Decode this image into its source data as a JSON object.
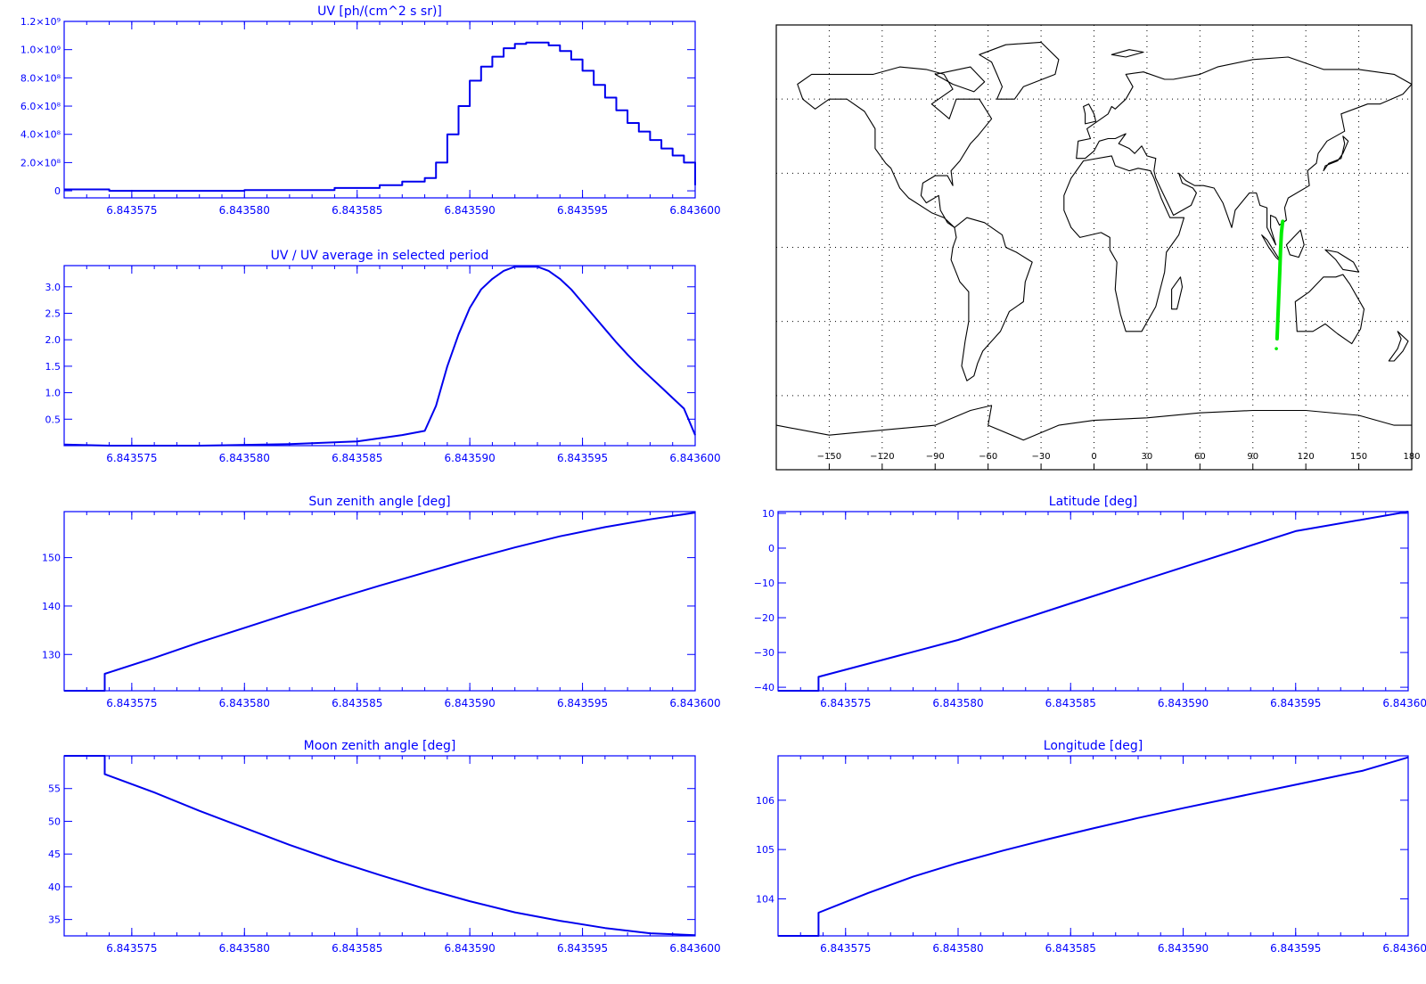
{
  "colors": {
    "axis": "#0000ff",
    "line": "#0000ee",
    "map": "#000000",
    "track": "#00ee00"
  },
  "chart_data": [
    {
      "id": "uv",
      "type": "line",
      "title": "UV [ph/(cm^2 s sr)]",
      "xlim": [
        6.843572,
        6.8436
      ],
      "ylim": [
        -50000000.0,
        1200000000.0
      ],
      "x_ticks": [
        6.843575,
        6.84358,
        6.843585,
        6.84359,
        6.843595,
        6.8436
      ],
      "x_tick_labels": [
        "6.843575",
        "6.843580",
        "6.843585",
        "6.843590",
        "6.843595",
        "6.843600"
      ],
      "y_ticks": [
        0,
        200000000.0,
        400000000.0,
        600000000.0,
        800000000.0,
        1000000000.0,
        1200000000.0
      ],
      "y_tick_labels": [
        "0",
        "2.0×10⁸",
        "4.0×10⁸",
        "6.0×10⁸",
        "8.0×10⁸",
        "1.0×10⁹",
        "1.2×10⁹"
      ],
      "x": [
        6.843572,
        6.843574,
        6.843576,
        6.84358,
        6.843584,
        6.843586,
        6.843587,
        6.843588,
        6.8435885,
        6.843589,
        6.8435895,
        6.84359,
        6.8435905,
        6.843591,
        6.8435915,
        6.843592,
        6.8435925,
        6.843593,
        6.8435935,
        6.843594,
        6.8435945,
        6.843595,
        6.8435955,
        6.843596,
        6.8435965,
        6.843597,
        6.8435975,
        6.843598,
        6.8435985,
        6.843599,
        6.8435995,
        6.8436
      ],
      "y": [
        10000000.0,
        0.0,
        0.0,
        5000000.0,
        20000000.0,
        40000000.0,
        65000000.0,
        90000000.0,
        200000000.0,
        400000000.0,
        600000000.0,
        780000000.0,
        880000000.0,
        950000000.0,
        1010000000.0,
        1040000000.0,
        1050000000.0,
        1050000000.0,
        1030000000.0,
        990000000.0,
        930000000.0,
        850000000.0,
        750000000.0,
        660000000.0,
        570000000.0,
        480000000.0,
        420000000.0,
        360000000.0,
        300000000.0,
        250000000.0,
        200000000.0,
        40000000.0
      ],
      "step": true
    },
    {
      "id": "uv_ratio",
      "type": "line",
      "title": "UV / UV average in selected period",
      "xlim": [
        6.843572,
        6.8436
      ],
      "ylim": [
        0.0,
        3.4
      ],
      "x_ticks": [
        6.843575,
        6.84358,
        6.843585,
        6.84359,
        6.843595,
        6.8436
      ],
      "x_tick_labels": [
        "6.843575",
        "6.843580",
        "6.843585",
        "6.843590",
        "6.843595",
        "6.843600"
      ],
      "y_ticks": [
        0.5,
        1.0,
        1.5,
        2.0,
        2.5,
        3.0
      ],
      "y_tick_labels": [
        "0.5",
        "1.0",
        "1.5",
        "2.0",
        "2.5",
        "3.0"
      ],
      "x": [
        6.843572,
        6.843574,
        6.843578,
        6.843582,
        6.843585,
        6.843587,
        6.843588,
        6.8435885,
        6.843589,
        6.8435895,
        6.84359,
        6.8435905,
        6.843591,
        6.8435915,
        6.843592,
        6.8435925,
        6.843593,
        6.8435935,
        6.843594,
        6.8435945,
        6.843595,
        6.8435955,
        6.843596,
        6.8435965,
        6.843597,
        6.8435975,
        6.843598,
        6.8435985,
        6.843599,
        6.8435995,
        6.8436
      ],
      "y": [
        0.02,
        0.0,
        0.0,
        0.03,
        0.08,
        0.2,
        0.28,
        0.75,
        1.5,
        2.1,
        2.6,
        2.95,
        3.15,
        3.3,
        3.38,
        3.38,
        3.38,
        3.3,
        3.15,
        2.95,
        2.7,
        2.45,
        2.2,
        1.95,
        1.72,
        1.5,
        1.3,
        1.1,
        0.9,
        0.7,
        0.2
      ]
    },
    {
      "id": "sun_zenith",
      "type": "line",
      "title": "Sun zenith angle [deg]",
      "xlim": [
        6.843572,
        6.8436
      ],
      "ylim": [
        122.5,
        159.5
      ],
      "x_ticks": [
        6.843575,
        6.84358,
        6.843585,
        6.84359,
        6.843595,
        6.8436
      ],
      "x_tick_labels": [
        "6.843575",
        "6.843580",
        "6.843585",
        "6.843590",
        "6.843595",
        "6.843600"
      ],
      "y_ticks": [
        130,
        140,
        150
      ],
      "y_tick_labels": [
        "130",
        "140",
        "150"
      ],
      "x": [
        6.843572,
        6.8435738,
        6.8435738,
        6.843576,
        6.843578,
        6.84358,
        6.843582,
        6.843584,
        6.843586,
        6.843588,
        6.84359,
        6.843592,
        6.843594,
        6.843596,
        6.843598,
        6.8436
      ],
      "y": [
        122.5,
        122.5,
        126.0,
        129.3,
        132.5,
        135.5,
        138.5,
        141.4,
        144.2,
        146.9,
        149.6,
        152.1,
        154.4,
        156.3,
        157.9,
        159.3
      ]
    },
    {
      "id": "moon_zenith",
      "type": "line",
      "title": "Moon zenith angle [deg]",
      "xlim": [
        6.843572,
        6.8436
      ],
      "ylim": [
        32.5,
        60.0
      ],
      "x_ticks": [
        6.843575,
        6.84358,
        6.843585,
        6.84359,
        6.843595,
        6.8436
      ],
      "x_tick_labels": [
        "6.843575",
        "6.843580",
        "6.843585",
        "6.843590",
        "6.843595",
        "6.843600"
      ],
      "y_ticks": [
        35,
        40,
        45,
        50,
        55
      ],
      "y_tick_labels": [
        "35",
        "40",
        "45",
        "50",
        "55"
      ],
      "x": [
        6.843572,
        6.8435738,
        6.8435738,
        6.843576,
        6.843578,
        6.84358,
        6.843582,
        6.843584,
        6.843586,
        6.843588,
        6.84359,
        6.843592,
        6.843594,
        6.843596,
        6.843598,
        6.8436
      ],
      "y": [
        60.0,
        60.0,
        57.2,
        54.4,
        51.6,
        49.0,
        46.4,
        44.0,
        41.8,
        39.7,
        37.8,
        36.1,
        34.8,
        33.7,
        32.9,
        32.6
      ]
    },
    {
      "id": "latitude",
      "type": "line",
      "title": "Latitude [deg]",
      "xlim": [
        6.843572,
        6.8436
      ],
      "ylim": [
        -41.0,
        10.5
      ],
      "x_ticks": [
        6.843575,
        6.84358,
        6.843585,
        6.84359,
        6.843595,
        6.8436
      ],
      "x_tick_labels": [
        "6.843575",
        "6.843580",
        "6.843585",
        "6.843590",
        "6.843595",
        "6.843600"
      ],
      "y_ticks": [
        -40,
        -30,
        -20,
        -10,
        0,
        10
      ],
      "y_tick_labels": [
        "−40",
        "−30",
        "−20",
        "−10",
        "0",
        "10"
      ],
      "x": [
        6.843572,
        6.8435738,
        6.8435738,
        6.84358,
        6.843585,
        6.84359,
        6.843595,
        6.8436
      ],
      "y": [
        -41.0,
        -41.0,
        -37.0,
        -26.4,
        -15.9,
        -5.5,
        4.9,
        10.5
      ]
    },
    {
      "id": "longitude",
      "type": "line",
      "title": "Longitude [deg]",
      "xlim": [
        6.843572,
        6.8436
      ],
      "ylim": [
        103.25,
        106.9
      ],
      "x_ticks": [
        6.843575,
        6.84358,
        6.843585,
        6.84359,
        6.843595,
        6.8436
      ],
      "x_tick_labels": [
        "6.843575",
        "6.843580",
        "6.843585",
        "6.843590",
        "6.843595",
        "6.843600"
      ],
      "y_ticks": [
        104,
        105,
        106
      ],
      "y_tick_labels": [
        "104",
        "105",
        "106"
      ],
      "x": [
        6.843572,
        6.8435738,
        6.8435738,
        6.843576,
        6.843578,
        6.84358,
        6.843582,
        6.843584,
        6.843586,
        6.843588,
        6.84359,
        6.843592,
        6.843594,
        6.843596,
        6.843598,
        6.8436
      ],
      "y": [
        103.25,
        103.25,
        103.72,
        104.12,
        104.45,
        104.73,
        104.98,
        105.21,
        105.43,
        105.64,
        105.84,
        106.03,
        106.22,
        106.41,
        106.6,
        106.87
      ]
    },
    {
      "id": "track_map",
      "type": "scatter",
      "xlim": [
        -180,
        180
      ],
      "ylim": [
        -90,
        90
      ],
      "x_ticks": [
        -150,
        -120,
        -90,
        -60,
        -30,
        0,
        30,
        60,
        90,
        120,
        150,
        180
      ],
      "x_tick_labels": [
        "−150",
        "−120",
        "−90",
        "−60",
        "−30",
        "0",
        "30",
        "60",
        "90",
        "120",
        "150",
        "180"
      ],
      "grid": true,
      "track_lon": [
        103.7,
        104.2,
        104.7,
        105.2,
        105.7,
        106.2,
        106.9
      ],
      "track_lat": [
        -37.0,
        -28.0,
        -19.0,
        -10.0,
        -1.0,
        6.0,
        10.5
      ],
      "marker_lon": 103.3,
      "marker_lat": -41.0
    }
  ]
}
